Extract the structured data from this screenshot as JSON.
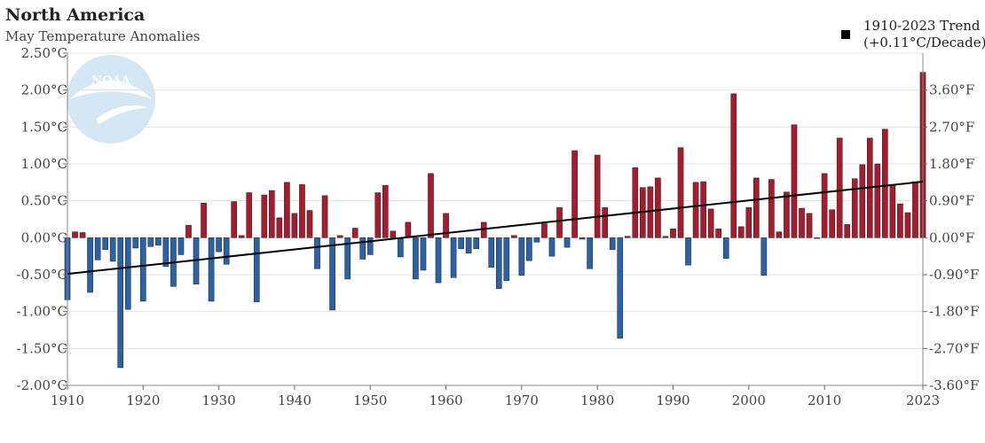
{
  "header": {
    "title": "North America",
    "subtitle": "May Temperature Anomalies"
  },
  "legend": {
    "line1": "1910-2023 Trend",
    "line2": "(+0.11°C/Decade)"
  },
  "logo": {
    "text": "NOAA"
  },
  "colors": {
    "positive": "#a61c2e",
    "negative": "#2a62a5",
    "trend": "#000000",
    "grid": "#e3e3e3"
  },
  "chart_data": {
    "type": "bar",
    "title": "North America",
    "subtitle": "May Temperature Anomalies",
    "x_ticks": [
      1910,
      1920,
      1930,
      1940,
      1950,
      1960,
      1970,
      1980,
      1990,
      2000,
      2010,
      2023
    ],
    "y_ticks_left": [
      "2.50°C",
      "2.00°C",
      "1.50°C",
      "1.00°C",
      "0.50°C",
      "0.00°C",
      "-0.50°C",
      "-1.00°C",
      "-1.50°C",
      "-2.00°C"
    ],
    "y_ticks_right": [
      "3.60°F",
      "2.70°F",
      "1.80°F",
      "0.90°F",
      "0.00°F",
      "-0.90°F",
      "-1.80°F",
      "-2.70°F",
      "-3.60°F"
    ],
    "ylim": [
      -2.0,
      2.5
    ],
    "xlim": [
      1910,
      2023
    ],
    "years": [
      1910,
      1911,
      1912,
      1913,
      1914,
      1915,
      1916,
      1917,
      1918,
      1919,
      1920,
      1921,
      1922,
      1923,
      1924,
      1925,
      1926,
      1927,
      1928,
      1929,
      1930,
      1931,
      1932,
      1933,
      1934,
      1935,
      1936,
      1937,
      1938,
      1939,
      1940,
      1941,
      1942,
      1943,
      1944,
      1945,
      1946,
      1947,
      1948,
      1949,
      1950,
      1951,
      1952,
      1953,
      1954,
      1955,
      1956,
      1957,
      1958,
      1959,
      1960,
      1961,
      1962,
      1963,
      1964,
      1965,
      1966,
      1967,
      1968,
      1969,
      1970,
      1971,
      1972,
      1973,
      1974,
      1975,
      1976,
      1977,
      1978,
      1979,
      1980,
      1981,
      1982,
      1983,
      1984,
      1985,
      1986,
      1987,
      1988,
      1989,
      1990,
      1991,
      1992,
      1993,
      1994,
      1995,
      1996,
      1997,
      1998,
      1999,
      2000,
      2001,
      2002,
      2003,
      2004,
      2005,
      2006,
      2007,
      2008,
      2009,
      2010,
      2011,
      2012,
      2013,
      2014,
      2015,
      2016,
      2017,
      2018,
      2019,
      2020,
      2021,
      2022,
      2023
    ],
    "values": [
      -0.84,
      0.08,
      0.07,
      -0.74,
      -0.3,
      -0.16,
      -0.32,
      -1.76,
      -0.97,
      -0.14,
      -0.86,
      -0.12,
      -0.1,
      -0.39,
      -0.66,
      -0.23,
      0.17,
      -0.63,
      0.47,
      -0.86,
      -0.19,
      -0.36,
      0.49,
      0.03,
      0.61,
      -0.87,
      0.58,
      0.64,
      0.27,
      0.75,
      0.33,
      0.72,
      0.37,
      -0.42,
      0.57,
      -0.98,
      0.03,
      -0.56,
      0.13,
      -0.29,
      -0.23,
      0.61,
      0.71,
      0.09,
      -0.26,
      0.21,
      -0.56,
      -0.44,
      0.87,
      -0.61,
      0.33,
      -0.54,
      -0.15,
      -0.21,
      -0.15,
      0.21,
      -0.4,
      -0.69,
      -0.58,
      0.03,
      -0.51,
      -0.31,
      -0.06,
      0.19,
      -0.25,
      0.41,
      -0.13,
      1.18,
      -0.02,
      -0.42,
      1.12,
      0.41,
      -0.16,
      -1.36,
      0.02,
      0.95,
      0.68,
      0.69,
      0.81,
      0.02,
      0.12,
      1.22,
      -0.37,
      0.75,
      0.76,
      0.39,
      0.12,
      -0.28,
      1.95,
      0.15,
      0.41,
      0.81,
      -0.51,
      0.79,
      0.08,
      0.62,
      1.53,
      0.4,
      0.33,
      -0.01,
      0.87,
      0.38,
      1.35,
      0.18,
      0.8,
      0.99,
      1.35,
      1.0,
      1.47,
      0.71,
      0.46,
      0.34,
      0.76,
      2.24
    ],
    "trend": {
      "name": "1910-2023 Trend",
      "start": [
        1910,
        -0.49
      ],
      "end": [
        2023,
        0.76
      ],
      "rate": "+0.11°C/Decade"
    }
  }
}
